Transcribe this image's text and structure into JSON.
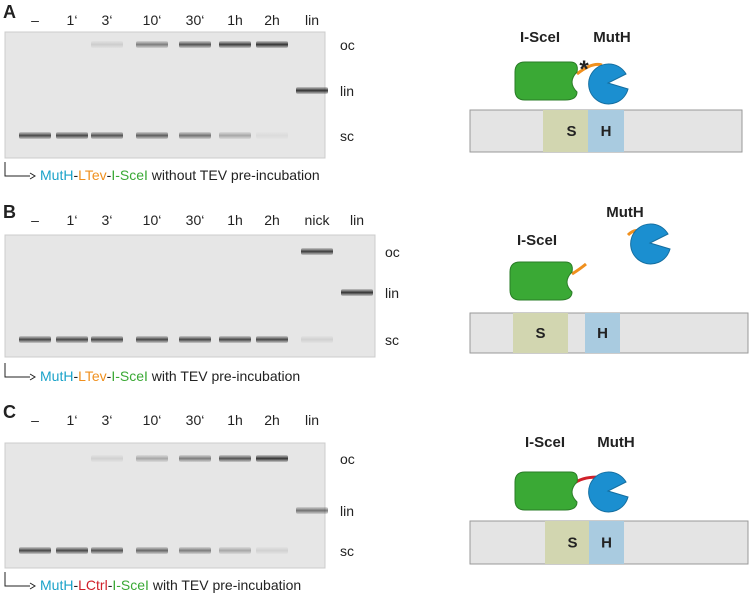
{
  "panels": [
    {
      "label": "A",
      "lanes": [
        "–",
        "1‘",
        "3‘",
        "10‘",
        "30‘",
        "1h",
        "2h",
        "lin"
      ],
      "bands": [
        "oc",
        "lin",
        "sc"
      ],
      "caption": [
        {
          "text": "MutH",
          "color": "#1ba3c9"
        },
        {
          "text": "-",
          "color": "#222"
        },
        {
          "text": "LTev",
          "color": "#f0901e"
        },
        {
          "text": "-",
          "color": "#222"
        },
        {
          "text": "I-SceI",
          "color": "#3aa935"
        },
        {
          "text": " without TEV pre-incubation",
          "color": "#222"
        }
      ],
      "diagram": {
        "enzyme": "I-SceI",
        "nicker": "MutH",
        "mark": "*",
        "site_s": "S",
        "site_h": "H"
      }
    },
    {
      "label": "B",
      "lanes": [
        "–",
        "1‘",
        "3‘",
        "10‘",
        "30‘",
        "1h",
        "2h",
        "nick",
        "lin"
      ],
      "bands": [
        "oc",
        "lin",
        "sc"
      ],
      "caption": [
        {
          "text": "MutH",
          "color": "#1ba3c9"
        },
        {
          "text": "-",
          "color": "#222"
        },
        {
          "text": "LTev",
          "color": "#f0901e"
        },
        {
          "text": "-",
          "color": "#222"
        },
        {
          "text": "I-SceI",
          "color": "#3aa935"
        },
        {
          "text": " with TEV pre-incubation",
          "color": "#222"
        }
      ],
      "diagram": {
        "enzyme": "I-SceI",
        "nicker": "MutH",
        "site_s": "S",
        "site_h": "H"
      }
    },
    {
      "label": "C",
      "lanes": [
        "–",
        "1‘",
        "3‘",
        "10‘",
        "30‘",
        "1h",
        "2h",
        "lin"
      ],
      "bands": [
        "oc",
        "lin",
        "sc"
      ],
      "caption": [
        {
          "text": "MutH",
          "color": "#1ba3c9"
        },
        {
          "text": "-",
          "color": "#222"
        },
        {
          "text": "LCtrl",
          "color": "#d0202a"
        },
        {
          "text": "-",
          "color": "#222"
        },
        {
          "text": "I-SceI",
          "color": "#3aa935"
        },
        {
          "text": " with TEV pre-incubation",
          "color": "#222"
        }
      ],
      "diagram": {
        "enzyme": "I-SceI",
        "nicker": "MutH",
        "site_s": "S",
        "site_h": "H"
      }
    }
  ]
}
